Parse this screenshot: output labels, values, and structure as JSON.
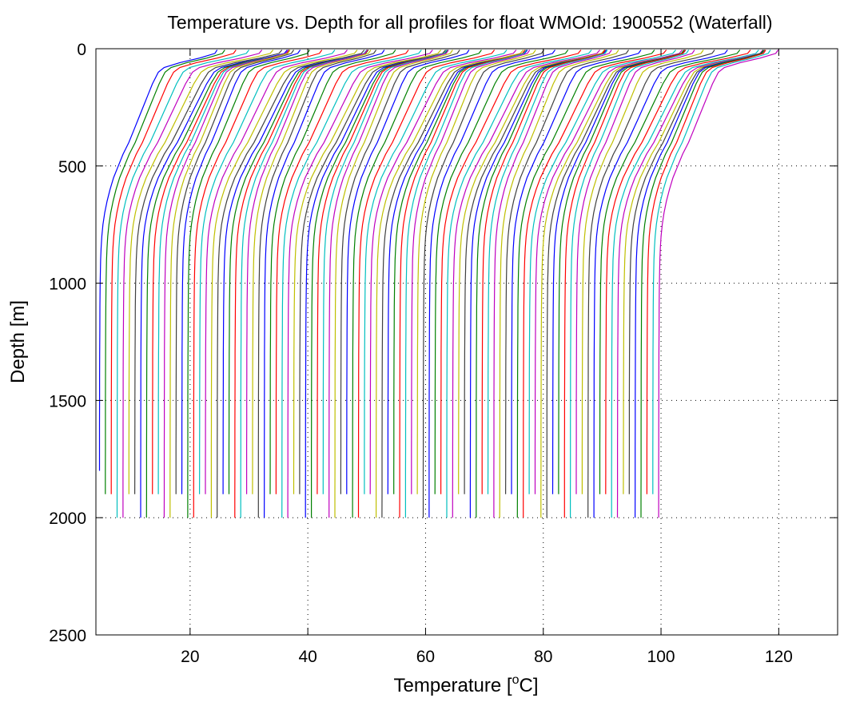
{
  "chart_data": {
    "type": "line",
    "title": "Temperature vs. Depth for all profiles for float WMOId: 1900552 (Waterfall)",
    "xlabel_main": "Temperature [",
    "xlabel_sup": "o",
    "xlabel_unit": "C]",
    "ylabel": "Depth [m]",
    "xlim": [
      4,
      130
    ],
    "ylim": [
      0,
      2500
    ],
    "y_reversed": true,
    "grid": true,
    "x_ticks": [
      20,
      40,
      60,
      80,
      100,
      120
    ],
    "y_ticks": [
      0,
      500,
      1000,
      1500,
      2000,
      2500
    ],
    "x_tick_labels": [
      "20",
      "40",
      "60",
      "80",
      "100",
      "120"
    ],
    "y_tick_labels": [
      "0",
      "500",
      "1000",
      "1500",
      "2000",
      "2500"
    ],
    "colors": [
      "#0000ff",
      "#008000",
      "#ff0000",
      "#00bfbf",
      "#bf00bf",
      "#bfbf00",
      "#404040"
    ],
    "waterfall_offset_per_profile": 1,
    "profile_count": 96,
    "profile_base_temperature": [
      4.6,
      5.6,
      6.6,
      7.6,
      8.6,
      9.6,
      10.6,
      11.6,
      12.6,
      13.6,
      14.6,
      15.6,
      16.6,
      17.6,
      18.6,
      19.6,
      20.6,
      21.6,
      22.6,
      23.6,
      24.6,
      25.6,
      26.6,
      27.6,
      28.6,
      29.6,
      30.6,
      31.6,
      32.6,
      33.6,
      34.6,
      35.6,
      36.6,
      37.6,
      38.6,
      39.6,
      40.6,
      41.6,
      42.6,
      43.6,
      44.6,
      45.6,
      46.6,
      47.6,
      48.6,
      49.6,
      50.6,
      51.6,
      52.6,
      53.6,
      54.6,
      55.6,
      56.6,
      57.6,
      58.6,
      59.6,
      60.6,
      61.6,
      62.6,
      63.6,
      64.6,
      65.6,
      66.6,
      67.6,
      68.6,
      69.6,
      70.6,
      71.6,
      72.6,
      73.6,
      74.6,
      75.6,
      76.6,
      77.6,
      78.6,
      79.6,
      80.6,
      81.6,
      82.6,
      83.6,
      84.6,
      85.6,
      86.6,
      87.6,
      88.6,
      89.6,
      90.6,
      91.6,
      92.6,
      93.6,
      94.6,
      95.6,
      96.6,
      97.6,
      98.6,
      99.6
    ],
    "profile_surface_warming": [
      20,
      20.3,
      21.2,
      22.4,
      23.6,
      24.5,
      25,
      24.9,
      24.2,
      23.3,
      22.1,
      21.1,
      20.4,
      20,
      20.1,
      20.7,
      21.8,
      23,
      24.1,
      24.8,
      25,
      24.6,
      23.7,
      22.6,
      21.4,
      20.5,
      20.1,
      20,
      20.4,
      21.3,
      22.5,
      23.7,
      24.6,
      25,
      24.8,
      24.2,
      23.2,
      22,
      21,
      20.3,
      20,
      20.2,
      20.8,
      21.9,
      23.1,
      24.2,
      24.8,
      25,
      24.6,
      23.7,
      22.5,
      21.3,
      20.5,
      20.1,
      20.1,
      20.5,
      21.4,
      22.6,
      23.8,
      24.6,
      25,
      24.8,
      24.1,
      23.1,
      21.9,
      20.9,
      20.3,
      20,
      20.2,
      20.9,
      22,
      23.3,
      24.3,
      24.9,
      25,
      24.5,
      23.6,
      22.4,
      21.3,
      20.5,
      20.1,
      20.1,
      20.6,
      21.5,
      22.7,
      23.8,
      24.6,
      25,
      24.7,
      24,
      23,
      21.8,
      20.8,
      20.2,
      20,
      20.3
    ],
    "profile_max_depth": [
      1840,
      1960,
      1990,
      2010,
      2000,
      1980,
      1950,
      2000,
      2010,
      1990,
      1970,
      2000,
      2010,
      1960,
      1980,
      2000,
      2010,
      1990,
      1950,
      2000,
      2005,
      1980,
      1970,
      2000,
      2010,
      1990,
      1960,
      2000,
      2000,
      1985,
      1970,
      2000,
      2010,
      1990,
      1955,
      2000,
      2005,
      1980,
      1970,
      2000,
      2010,
      1990,
      1960,
      2000,
      2000,
      1985,
      1970,
      2000,
      2010,
      1990,
      1955,
      2000,
      2005,
      1980,
      1970,
      2000,
      2010,
      1990,
      1960,
      2000,
      2000,
      1985,
      1970,
      2000,
      2010,
      1990,
      1955,
      2000,
      2005,
      1980,
      1970,
      2000,
      2010,
      1990,
      1960,
      2000,
      2000,
      1985,
      1970,
      2000,
      2010,
      1990,
      1955,
      2000,
      2005,
      1980,
      1970,
      2000,
      2010,
      1990,
      1960,
      2000,
      2000,
      1985,
      1970,
      2000
    ],
    "profile_depths": [
      5,
      20,
      40,
      60,
      80,
      100,
      150,
      200,
      250,
      300,
      350,
      400,
      450,
      500,
      550,
      600,
      650,
      700,
      750,
      800,
      850,
      900,
      950,
      1000,
      1100,
      1200,
      1300,
      1400,
      1500,
      1600,
      1700,
      1800,
      1900,
      2000
    ],
    "profile_shape_fraction": [
      1.0,
      0.98,
      0.85,
      0.68,
      0.55,
      0.5,
      0.45,
      0.41,
      0.37,
      0.33,
      0.29,
      0.25,
      0.2,
      0.16,
      0.12,
      0.09,
      0.065,
      0.045,
      0.03,
      0.02,
      0.014,
      0.01,
      0.008,
      0.006,
      0.004,
      0.003,
      0.002,
      0.0015,
      0.001,
      0.0008,
      0.0005,
      0.0003,
      0.0001,
      0.0
    ]
  }
}
